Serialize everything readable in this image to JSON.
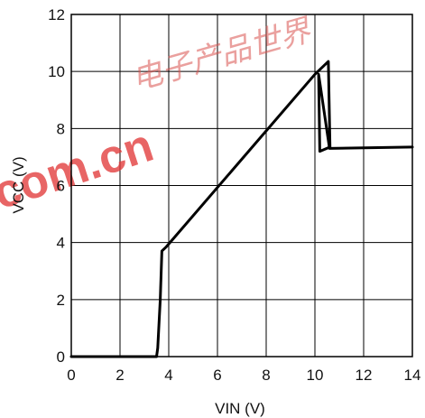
{
  "chart_data": {
    "type": "line",
    "xlabel": "VIN (V)",
    "ylabel": "VCC (V)",
    "xlim": [
      0,
      14
    ],
    "ylim": [
      0,
      12
    ],
    "x_ticks": [
      0,
      2,
      4,
      6,
      8,
      10,
      12,
      14
    ],
    "y_ticks": [
      0,
      2,
      4,
      6,
      8,
      10,
      12
    ],
    "grid": true,
    "series": [
      {
        "points": [
          [
            0,
            0
          ],
          [
            3.5,
            0
          ],
          [
            3.55,
            0.3
          ],
          [
            3.65,
            2.0
          ],
          [
            3.72,
            3.7
          ],
          [
            3.9,
            3.85
          ],
          [
            10.0,
            9.9
          ],
          [
            10.55,
            10.35
          ],
          [
            10.62,
            7.35
          ],
          [
            10.2,
            7.2
          ],
          [
            10.15,
            9.9
          ],
          [
            10.6,
            7.3
          ],
          [
            14,
            7.35
          ]
        ],
        "color": "#000000"
      }
    ]
  },
  "watermark": {
    "cjk_text": "电子产品世界",
    "latin_text": "com.cn",
    "color": "#e23b3b"
  }
}
